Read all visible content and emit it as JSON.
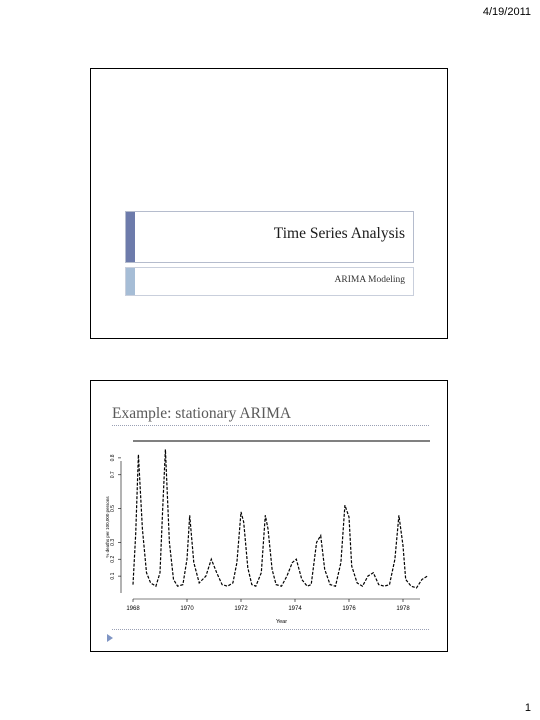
{
  "header": {
    "date": "4/19/2011"
  },
  "footer": {
    "page_number": "1"
  },
  "slide1": {
    "title": "Time Series Analysis",
    "subtitle": "ARIMA Modeling"
  },
  "slide2": {
    "title": "Example: stationary ARIMA",
    "chart_data": {
      "type": "line",
      "title": "",
      "xlabel": "Year",
      "ylabel": "% deaths per 100,000 persons",
      "xlim": [
        1968,
        1979
      ],
      "ylim": [
        0,
        0.9
      ],
      "x_ticks": [
        "1968",
        "1970",
        "1972",
        "1974",
        "1976",
        "1978"
      ],
      "y_ticks": [
        "0.1",
        "0.2",
        "0.3",
        "0.5",
        "0.7",
        "0.8"
      ],
      "series": [
        {
          "x": [
            1968.0,
            1968.1,
            1968.2,
            1968.35,
            1968.5,
            1968.65,
            1968.85,
            1969.0,
            1969.1,
            1969.2,
            1969.35,
            1969.5,
            1969.65,
            1969.85,
            1970.0,
            1970.1,
            1970.25,
            1970.45,
            1970.7,
            1970.9,
            1971.1,
            1971.3,
            1971.5,
            1971.7,
            1971.85,
            1972.0,
            1972.1,
            1972.25,
            1972.4,
            1972.55,
            1972.75,
            1972.9,
            1973.0,
            1973.15,
            1973.3,
            1973.5,
            1973.7,
            1973.9,
            1974.05,
            1974.25,
            1974.45,
            1974.6,
            1974.8,
            1974.95,
            1975.1,
            1975.3,
            1975.5,
            1975.7,
            1975.85,
            1976.0,
            1976.1,
            1976.3,
            1976.5,
            1976.7,
            1976.9,
            1977.1,
            1977.3,
            1977.5,
            1977.7,
            1977.85,
            1978.0,
            1978.1,
            1978.3,
            1978.5,
            1978.7,
            1978.9
          ],
          "y": [
            0.05,
            0.35,
            0.82,
            0.38,
            0.12,
            0.06,
            0.04,
            0.12,
            0.5,
            0.85,
            0.3,
            0.08,
            0.04,
            0.05,
            0.2,
            0.46,
            0.18,
            0.06,
            0.1,
            0.2,
            0.12,
            0.05,
            0.04,
            0.06,
            0.18,
            0.48,
            0.42,
            0.15,
            0.05,
            0.04,
            0.12,
            0.46,
            0.38,
            0.14,
            0.05,
            0.04,
            0.1,
            0.18,
            0.2,
            0.08,
            0.04,
            0.05,
            0.3,
            0.34,
            0.14,
            0.05,
            0.04,
            0.18,
            0.52,
            0.45,
            0.16,
            0.06,
            0.04,
            0.1,
            0.12,
            0.05,
            0.04,
            0.05,
            0.2,
            0.46,
            0.28,
            0.08,
            0.04,
            0.03,
            0.08,
            0.1
          ]
        }
      ]
    }
  }
}
